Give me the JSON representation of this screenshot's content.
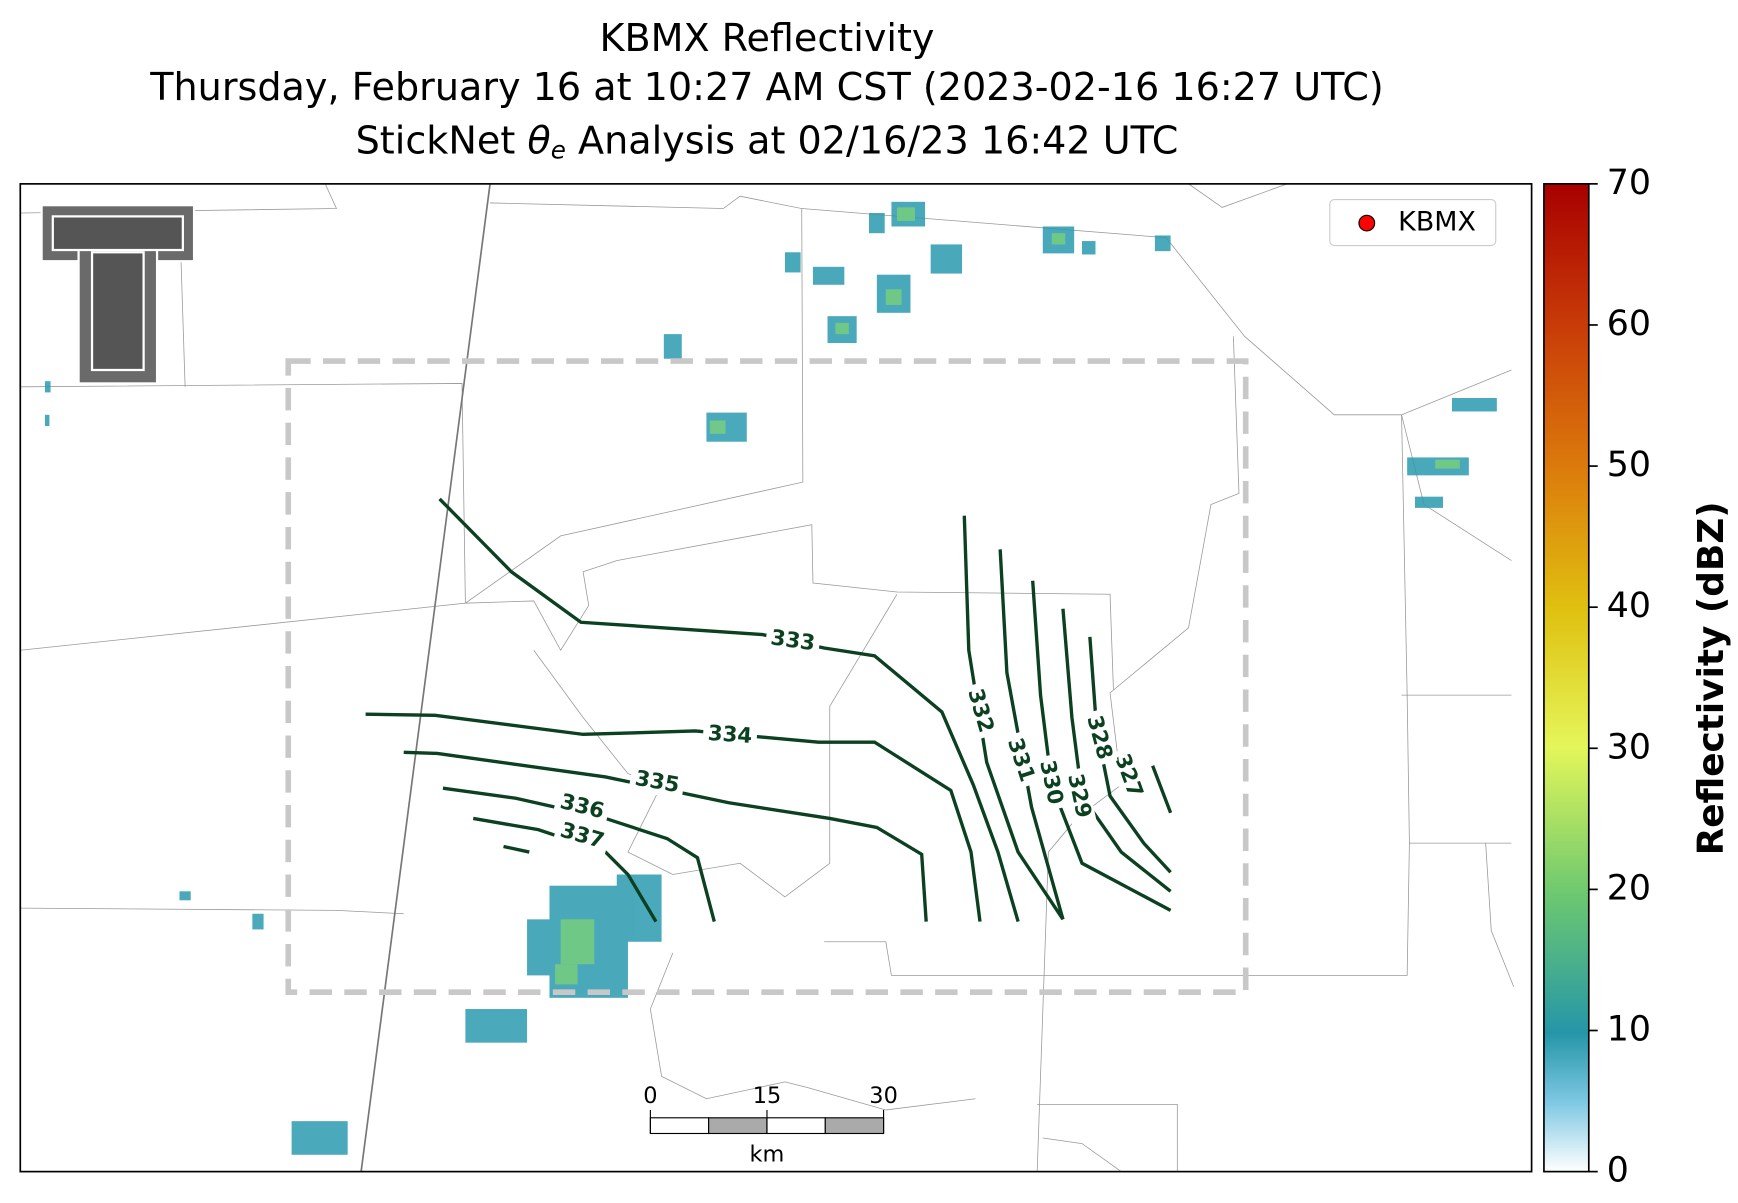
{
  "title": {
    "line1": "KBMX Reflectivity",
    "line2": "Thursday, February 16 at 10:27 AM CST (2023-02-16 16:27 UTC)",
    "line3": {
      "before": "StickNet",
      "symbol": "θ",
      "subscript": "e",
      "after": "Analysis at 02/16/23 16:42 UTC"
    }
  },
  "legend": {
    "label": "KBMX",
    "color": "#ff0000"
  },
  "contours": {
    "color": "#0b4020",
    "levels": [
      327,
      328,
      329,
      330,
      331,
      332,
      333,
      334,
      335,
      336,
      337
    ]
  },
  "colorbar": {
    "label": "Reflectivity (dBZ)",
    "lim": [
      0,
      70
    ],
    "ticks": [
      0,
      10,
      20,
      30,
      40,
      50,
      60,
      70
    ]
  },
  "scale_bar": {
    "lim": [
      0,
      30
    ],
    "ticks": [
      0,
      15,
      30
    ],
    "unit": "km"
  }
}
